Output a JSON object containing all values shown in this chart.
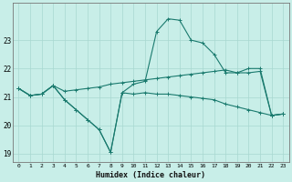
{
  "xlabel": "Humidex (Indice chaleur)",
  "xlim": [
    -0.5,
    23.5
  ],
  "ylim": [
    18.7,
    24.3
  ],
  "yticks": [
    19,
    20,
    21,
    22,
    23
  ],
  "ytick_labels": [
    "19",
    "20",
    "21",
    "22",
    "23"
  ],
  "xticks": [
    0,
    1,
    2,
    3,
    4,
    5,
    6,
    7,
    8,
    9,
    10,
    11,
    12,
    13,
    14,
    15,
    16,
    17,
    18,
    19,
    20,
    21,
    22,
    23
  ],
  "bg_color": "#c8eee8",
  "line_color": "#1a7a6e",
  "grid_color": "#a8d8d0",
  "line1_x": [
    0,
    1,
    2,
    3,
    4,
    5,
    6,
    7,
    8,
    9,
    10,
    11,
    12,
    13,
    14,
    15,
    16,
    17,
    18,
    19,
    20,
    21,
    22,
    23
  ],
  "line1_y": [
    21.3,
    21.05,
    21.1,
    21.4,
    20.9,
    20.55,
    20.2,
    19.85,
    19.05,
    21.15,
    21.1,
    21.15,
    21.1,
    21.1,
    21.05,
    21.0,
    20.95,
    20.9,
    20.75,
    20.65,
    20.55,
    20.45,
    20.35,
    20.4
  ],
  "line2_x": [
    0,
    1,
    2,
    3,
    4,
    5,
    6,
    7,
    8,
    9,
    10,
    11,
    12,
    13,
    14,
    15,
    16,
    17,
    18,
    19,
    20,
    21,
    22,
    23
  ],
  "line2_y": [
    21.3,
    21.05,
    21.1,
    21.4,
    20.9,
    20.55,
    20.2,
    19.85,
    19.05,
    21.15,
    21.45,
    21.55,
    23.3,
    23.75,
    23.7,
    23.0,
    22.9,
    22.5,
    21.85,
    21.85,
    22.0,
    22.0,
    20.35,
    20.4
  ],
  "line3_x": [
    0,
    1,
    2,
    3,
    4,
    5,
    6,
    7,
    8,
    9,
    10,
    11,
    12,
    13,
    14,
    15,
    16,
    17,
    18,
    19,
    20,
    21,
    22,
    23
  ],
  "line3_y": [
    21.3,
    21.05,
    21.1,
    21.4,
    21.2,
    21.25,
    21.3,
    21.35,
    21.45,
    21.5,
    21.55,
    21.6,
    21.65,
    21.7,
    21.75,
    21.8,
    21.85,
    21.9,
    21.95,
    21.85,
    21.85,
    21.9,
    20.35,
    20.4
  ]
}
